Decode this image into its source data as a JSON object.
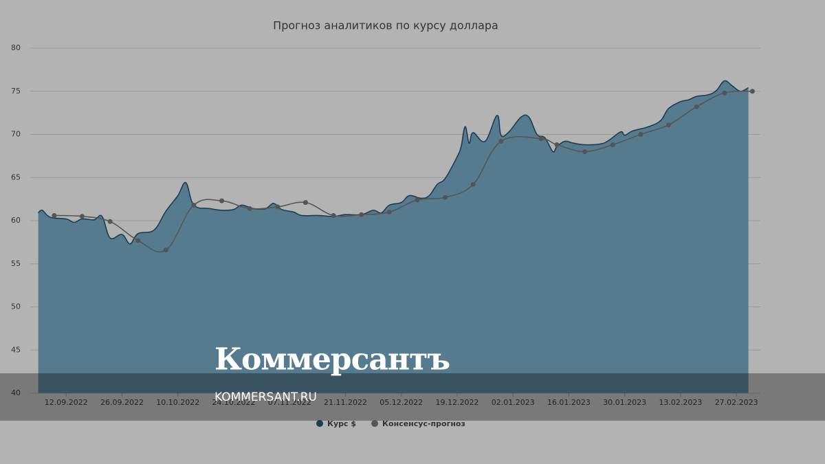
{
  "chart_data": {
    "type": "area",
    "title": "Прогноз аналитиков по курсу доллара",
    "xlim": [
      "03.09.2022",
      "05.03.2023"
    ],
    "xticks": [
      "12.09.2022",
      "26.09.2022",
      "10.10.2022",
      "24.10.2022",
      "07.11.2022",
      "21.11.2022",
      "05.12.2022",
      "19.12.2022",
      "02.01.2023",
      "16.01.2023",
      "30.01.2023",
      "13.02.2023",
      "27.02.2023"
    ],
    "ylim": [
      40,
      80
    ],
    "yticks": [
      40,
      45,
      50,
      55,
      60,
      65,
      70,
      75,
      80
    ],
    "grid": true,
    "legend": "bottom",
    "series": [
      {
        "name": "Курс $",
        "type": "area",
        "color": "#1a3d55",
        "fill": "#567b8f",
        "x": [
          "05.09.2022",
          "06.09.2022",
          "08.09.2022",
          "12.09.2022",
          "14.09.2022",
          "16.09.2022",
          "19.09.2022",
          "21.09.2022",
          "23.09.2022",
          "26.09.2022",
          "28.09.2022",
          "30.09.2022",
          "04.10.2022",
          "07.10.2022",
          "10.10.2022",
          "12.10.2022",
          "14.10.2022",
          "18.10.2022",
          "21.10.2022",
          "24.10.2022",
          "26.10.2022",
          "29.10.2022",
          "01.11.2022",
          "03.11.2022",
          "05.11.2022",
          "08.11.2022",
          "10.11.2022",
          "14.11.2022",
          "18.11.2022",
          "21.11.2022",
          "25.11.2022",
          "28.11.2022",
          "30.11.2022",
          "02.12.2022",
          "05.12.2022",
          "07.12.2022",
          "10.12.2022",
          "12.12.2022",
          "14.12.2022",
          "16.12.2022",
          "19.12.2022",
          "20.12.2022",
          "21.12.2022",
          "22.12.2022",
          "23.12.2022",
          "26.12.2022",
          "29.12.2022",
          "30.12.2022",
          "01.01.2023",
          "04.01.2023",
          "06.01.2023",
          "08.01.2023",
          "10.01.2023",
          "12.01.2023",
          "13.01.2023",
          "15.01.2023",
          "17.01.2023",
          "20.01.2023",
          "24.01.2023",
          "26.01.2023",
          "29.01.2023",
          "30.01.2023",
          "01.02.2023",
          "05.02.2023",
          "08.02.2023",
          "10.02.2023",
          "13.02.2023",
          "15.02.2023",
          "17.02.2023",
          "20.02.2023",
          "22.02.2023",
          "24.02.2023",
          "26.02.2023",
          "28.02.2023",
          "02.03.2023"
        ],
        "values": [
          60.9,
          61.2,
          60.4,
          60.2,
          59.8,
          60.2,
          60.1,
          60.5,
          58.0,
          58.4,
          57.3,
          58.5,
          58.9,
          61.1,
          62.9,
          64.4,
          61.8,
          61.4,
          61.2,
          61.3,
          61.8,
          61.4,
          61.4,
          62.0,
          61.3,
          61.0,
          60.6,
          60.6,
          60.5,
          60.7,
          60.7,
          61.2,
          60.9,
          61.8,
          62.1,
          62.9,
          62.6,
          62.9,
          64.2,
          64.9,
          67.4,
          68.6,
          70.9,
          69.0,
          70.2,
          69.2,
          72.2,
          69.9,
          70.3,
          72.0,
          72.0,
          70.0,
          69.6,
          68.0,
          68.6,
          69.2,
          69.0,
          68.8,
          68.9,
          69.3,
          70.3,
          69.9,
          70.4,
          70.9,
          71.6,
          73.0,
          73.8,
          74.0,
          74.4,
          74.6,
          75.1,
          76.2,
          75.6,
          75.0,
          75.4
        ]
      },
      {
        "name": "Консенсус-прогноз",
        "type": "line",
        "color": "#555555",
        "x": [
          "09.09.2022",
          "16.09.2022",
          "23.09.2022",
          "30.09.2022",
          "07.10.2022",
          "14.10.2022",
          "21.10.2022",
          "28.10.2022",
          "04.11.2022",
          "11.11.2022",
          "18.11.2022",
          "25.11.2022",
          "02.12.2022",
          "09.12.2022",
          "16.12.2022",
          "23.12.2022",
          "30.12.2022",
          "09.01.2023",
          "13.01.2023",
          "20.01.2023",
          "27.01.2023",
          "03.02.2023",
          "10.02.2023",
          "17.02.2023",
          "24.02.2023",
          "03.03.2023"
        ],
        "values": [
          60.6,
          60.5,
          59.9,
          57.7,
          56.6,
          61.8,
          62.3,
          61.4,
          61.6,
          62.1,
          60.6,
          60.7,
          61.0,
          62.4,
          62.7,
          64.2,
          69.2,
          69.5,
          68.8,
          68.0,
          68.8,
          70.0,
          71.1,
          73.2,
          74.8,
          75.0
        ]
      }
    ]
  },
  "watermark": {
    "logo": "Коммерсантъ",
    "url": "KOMMERSANT.RU"
  }
}
